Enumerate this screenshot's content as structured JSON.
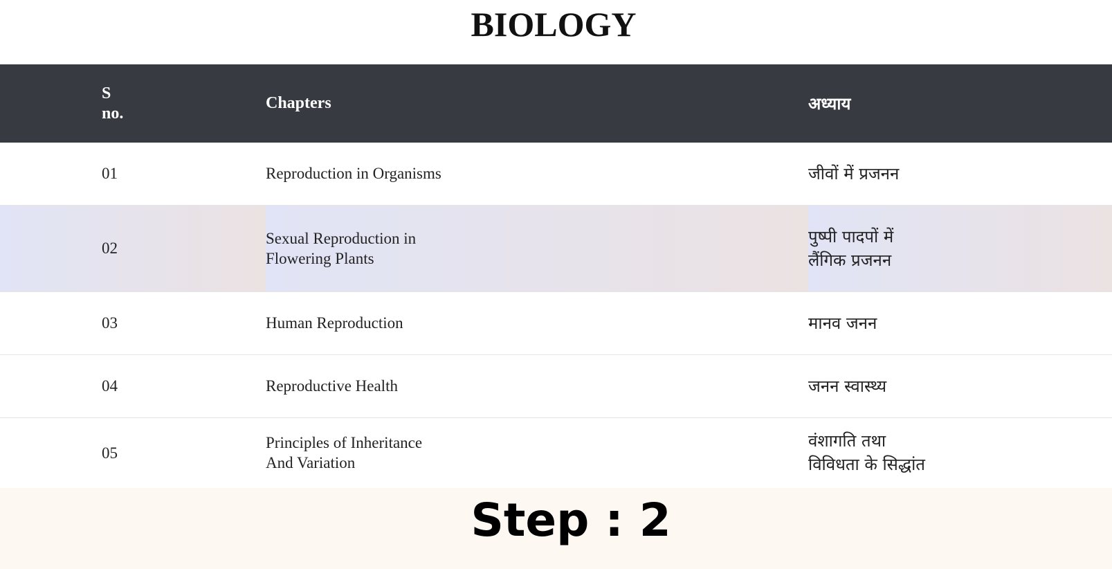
{
  "title": "BIOLOGY",
  "table": {
    "headers": [
      "S no.",
      "Chapters",
      "अध्याय"
    ],
    "rows": [
      [
        "01",
        "Reproduction in Organisms",
        "जीवों में प्रजनन"
      ],
      [
        "02",
        "Sexual Reproduction in\nFlowering Plants",
        "पुष्पी पादपों में\nलैंगिक प्रजनन"
      ],
      [
        "03",
        "Human Reproduction",
        "मानव जनन"
      ],
      [
        "04",
        "Reproductive Health",
        "जनन स्वास्थ्य"
      ],
      [
        "05",
        "Principles of Inheritance\nAnd Variation",
        "वंशागति तथा\nविविधता के सिद्धांत"
      ]
    ]
  },
  "footer": "Step : 2"
}
